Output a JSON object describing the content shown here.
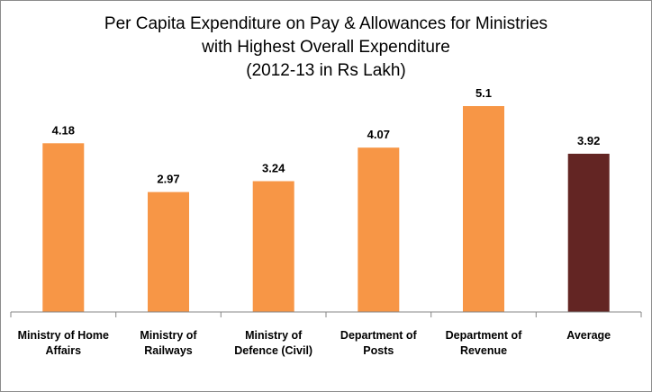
{
  "chart_data": {
    "type": "bar",
    "title_lines": [
      "Per Capita Expenditure on Pay & Allowances for Ministries",
      "with Highest Overall Expenditure",
      "(2012-13 in Rs Lakh)"
    ],
    "categories": [
      [
        "Ministry of Home",
        "Affairs"
      ],
      [
        "Ministry of",
        "Railways"
      ],
      [
        "Ministry of",
        "Defence (Civil)"
      ],
      [
        "Department of",
        "Posts"
      ],
      [
        "Department of",
        "Revenue"
      ],
      [
        "Average"
      ]
    ],
    "values": [
      4.18,
      2.97,
      3.24,
      4.07,
      5.1,
      3.92
    ],
    "data_labels": [
      "4.18",
      "2.97",
      "3.24",
      "4.07",
      "5.1",
      "3.92"
    ],
    "colors": [
      "#f79646",
      "#f79646",
      "#f79646",
      "#f79646",
      "#f79646",
      "#632523"
    ],
    "axis_color": "#868686",
    "ylim": [
      0,
      5.5
    ],
    "grid": false,
    "legend": "none"
  }
}
